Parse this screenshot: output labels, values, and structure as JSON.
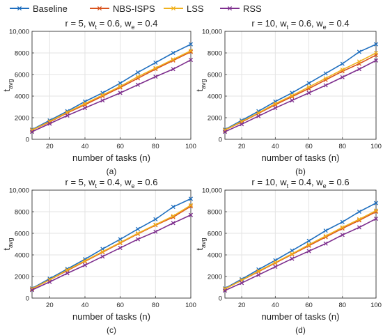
{
  "legend": {
    "placement": "top",
    "entries": [
      {
        "name": "Baseline",
        "color": "#1f6fbf"
      },
      {
        "name": "NBS-ISPS",
        "color": "#d9541e"
      },
      {
        "name": "LSS",
        "color": "#f0b11d"
      },
      {
        "name": "RSS",
        "color": "#7e2f8e"
      }
    ]
  },
  "chart_data": [
    {
      "type": "line",
      "title_parts": {
        "base": "r = 5, w",
        "sub1": "t",
        "mid": " = 0.6, w",
        "sub2": "e",
        "end": " = 0.4"
      },
      "xlabel": "number of tasks (n)",
      "ylabel": {
        "base": "t",
        "sub": "avg"
      },
      "caption": "(a)",
      "x": [
        10,
        20,
        30,
        40,
        50,
        60,
        70,
        80,
        90,
        100
      ],
      "xlim": [
        10,
        100
      ],
      "ylim": [
        0,
        10000
      ],
      "xticks": [
        "20",
        "40",
        "60",
        "80",
        "100"
      ],
      "yticks": [
        "0",
        "2000",
        "4000",
        "6000",
        "8000",
        "10,000"
      ],
      "grid": true,
      "series": [
        {
          "name": "Baseline",
          "color": "#1f6fbf",
          "values": [
            900,
            1750,
            2600,
            3500,
            4300,
            5200,
            6200,
            7100,
            8000,
            8800
          ]
        },
        {
          "name": "NBS-ISPS",
          "color": "#d9541e",
          "values": [
            850,
            1600,
            2450,
            3200,
            4000,
            4800,
            5650,
            6500,
            7300,
            8100
          ]
        },
        {
          "name": "LSS",
          "color": "#f0b11d",
          "values": [
            850,
            1650,
            2500,
            3300,
            4100,
            4900,
            5800,
            6600,
            7400,
            8200
          ]
        },
        {
          "name": "RSS",
          "color": "#7e2f8e",
          "values": [
            700,
            1450,
            2200,
            2900,
            3600,
            4300,
            5050,
            5800,
            6500,
            7350
          ]
        }
      ]
    },
    {
      "type": "line",
      "title_parts": {
        "base": "r = 10, w",
        "sub1": "t",
        "mid": " = 0.6, w",
        "sub2": "e",
        "end": " = 0.4"
      },
      "xlabel": "number of tasks (n)",
      "ylabel": {
        "base": "t",
        "sub": "avg"
      },
      "caption": "(b)",
      "x": [
        10,
        20,
        30,
        40,
        50,
        60,
        70,
        80,
        90,
        100
      ],
      "xlim": [
        10,
        100
      ],
      "ylim": [
        0,
        10000
      ],
      "xticks": [
        "20",
        "40",
        "60",
        "80",
        "100"
      ],
      "yticks": [
        "0",
        "2000",
        "4000",
        "6000",
        "8000",
        "10,000"
      ],
      "grid": true,
      "series": [
        {
          "name": "Baseline",
          "color": "#1f6fbf",
          "values": [
            900,
            1750,
            2600,
            3500,
            4300,
            5200,
            6100,
            7000,
            8100,
            8800
          ]
        },
        {
          "name": "NBS-ISPS",
          "color": "#d9541e",
          "values": [
            850,
            1600,
            2400,
            3200,
            3950,
            4700,
            5500,
            6300,
            7000,
            7800
          ]
        },
        {
          "name": "LSS",
          "color": "#f0b11d",
          "values": [
            850,
            1650,
            2450,
            3300,
            4050,
            4850,
            5650,
            6450,
            7200,
            8000
          ]
        },
        {
          "name": "RSS",
          "color": "#7e2f8e",
          "values": [
            700,
            1400,
            2150,
            2900,
            3600,
            4300,
            5000,
            5750,
            6500,
            7300
          ]
        }
      ]
    },
    {
      "type": "line",
      "title_parts": {
        "base": "r = 5, w",
        "sub1": "t",
        "mid": " = 0.4, w",
        "sub2": "e",
        "end": " = 0.6"
      },
      "xlabel": "number of tasks  (n)",
      "ylabel": {
        "base": "t",
        "sub": "avg"
      },
      "caption": "(c)",
      "x": [
        10,
        20,
        30,
        40,
        50,
        60,
        70,
        80,
        90,
        100
      ],
      "xlim": [
        10,
        100
      ],
      "ylim": [
        0,
        10000
      ],
      "xticks": [
        "20",
        "40",
        "60",
        "80",
        "100"
      ],
      "yticks": [
        "0",
        "2000",
        "4000",
        "6000",
        "8000",
        "10,000"
      ],
      "grid": true,
      "series": [
        {
          "name": "Baseline",
          "color": "#1f6fbf",
          "values": [
            900,
            1800,
            2700,
            3600,
            4550,
            5450,
            6400,
            7300,
            8450,
            9200
          ]
        },
        {
          "name": "NBS-ISPS",
          "color": "#d9541e",
          "values": [
            850,
            1700,
            2550,
            3400,
            4250,
            5100,
            5950,
            6750,
            7500,
            8500
          ]
        },
        {
          "name": "LSS",
          "color": "#f0b11d",
          "values": [
            850,
            1700,
            2600,
            3450,
            4300,
            5150,
            6000,
            6800,
            7600,
            8600
          ]
        },
        {
          "name": "RSS",
          "color": "#7e2f8e",
          "values": [
            750,
            1500,
            2300,
            3050,
            3850,
            4650,
            5450,
            6150,
            6950,
            7700
          ]
        }
      ]
    },
    {
      "type": "line",
      "title_parts": {
        "base": "r = 10, w",
        "sub1": "t",
        "mid": " = 0.4, w",
        "sub2": "e",
        "end": " = 0.6"
      },
      "xlabel": "number of tasks  (n)",
      "ylabel": {
        "base": "t",
        "sub": "avg"
      },
      "caption": "(d)",
      "x": [
        10,
        20,
        30,
        40,
        50,
        60,
        70,
        80,
        90,
        100
      ],
      "xlim": [
        10,
        100
      ],
      "ylim": [
        0,
        10000
      ],
      "xticks": [
        "20",
        "40",
        "60",
        "80",
        "100"
      ],
      "yticks": [
        "0",
        "2000",
        "4000",
        "6000",
        "8000",
        "10,000"
      ],
      "grid": true,
      "series": [
        {
          "name": "Baseline",
          "color": "#1f6fbf",
          "values": [
            900,
            1750,
            2650,
            3500,
            4400,
            5300,
            6250,
            7050,
            8000,
            8800
          ]
        },
        {
          "name": "NBS-ISPS",
          "color": "#d9541e",
          "values": [
            850,
            1650,
            2450,
            3250,
            4050,
            4850,
            5650,
            6450,
            7200,
            8000
          ]
        },
        {
          "name": "LSS",
          "color": "#f0b11d",
          "values": [
            850,
            1650,
            2500,
            3300,
            4100,
            4950,
            5750,
            6550,
            7300,
            8100
          ]
        },
        {
          "name": "RSS",
          "color": "#7e2f8e",
          "values": [
            700,
            1400,
            2150,
            2900,
            3650,
            4350,
            5050,
            5850,
            6550,
            7350
          ]
        }
      ]
    }
  ]
}
